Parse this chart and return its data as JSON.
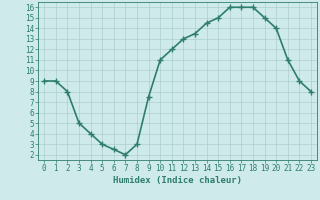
{
  "x": [
    0,
    1,
    2,
    3,
    4,
    5,
    6,
    7,
    8,
    9,
    10,
    11,
    12,
    13,
    14,
    15,
    16,
    17,
    18,
    19,
    20,
    21,
    22,
    23
  ],
  "y": [
    9,
    9,
    8,
    5,
    4,
    3,
    2.5,
    2,
    3,
    7.5,
    11,
    12,
    13,
    13.5,
    14.5,
    15,
    16,
    16,
    16,
    15,
    14,
    11,
    9,
    8
  ],
  "line_color": "#2e7d6e",
  "bg_color": "#ceeaea",
  "grid_color": "#aecece",
  "xlabel": "Humidex (Indice chaleur)",
  "xlim_min": -0.5,
  "xlim_max": 23.5,
  "ylim_min": 1.5,
  "ylim_max": 16.5,
  "yticks": [
    2,
    3,
    4,
    5,
    6,
    7,
    8,
    9,
    10,
    11,
    12,
    13,
    14,
    15,
    16
  ],
  "xticks": [
    0,
    1,
    2,
    3,
    4,
    5,
    6,
    7,
    8,
    9,
    10,
    11,
    12,
    13,
    14,
    15,
    16,
    17,
    18,
    19,
    20,
    21,
    22,
    23
  ],
  "marker": "+",
  "linewidth": 1.2,
  "markersize": 4,
  "tick_fontsize": 5.5,
  "label_fontsize": 6.5
}
